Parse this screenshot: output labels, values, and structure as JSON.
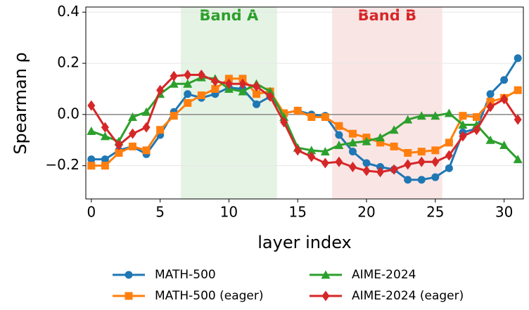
{
  "chart_data": {
    "type": "line",
    "x_label": "layer index",
    "y_label": "Spearman ρ",
    "x": [
      0,
      1,
      2,
      3,
      4,
      5,
      6,
      7,
      8,
      9,
      10,
      11,
      12,
      13,
      14,
      15,
      16,
      17,
      18,
      19,
      20,
      21,
      22,
      23,
      24,
      25,
      26,
      27,
      28,
      29,
      30,
      31
    ],
    "series": [
      {
        "name": "MATH-500",
        "color": "#1f77b4",
        "marker": "circle",
        "values": [
          -0.175,
          -0.175,
          -0.14,
          -0.125,
          -0.155,
          -0.08,
          0.01,
          0.08,
          0.065,
          0.08,
          0.105,
          0.1,
          0.04,
          0.07,
          0.005,
          0.015,
          0.0,
          -0.005,
          -0.08,
          -0.145,
          -0.19,
          -0.205,
          -0.215,
          -0.255,
          -0.255,
          -0.245,
          -0.21,
          -0.07,
          -0.055,
          0.08,
          0.135,
          0.22
        ]
      },
      {
        "name": "MATH-500 (eager)",
        "color": "#ff7f0e",
        "marker": "square",
        "values": [
          -0.2,
          -0.2,
          -0.15,
          -0.125,
          -0.14,
          -0.06,
          -0.005,
          0.045,
          0.075,
          0.1,
          0.14,
          0.14,
          0.08,
          0.09,
          0.005,
          0.015,
          -0.01,
          -0.01,
          -0.045,
          -0.075,
          -0.09,
          -0.11,
          -0.125,
          -0.15,
          -0.145,
          -0.14,
          -0.11,
          -0.005,
          -0.01,
          0.05,
          0.065,
          0.095
        ]
      },
      {
        "name": "AIME-2024",
        "color": "#2ca02c",
        "marker": "triangle",
        "values": [
          -0.065,
          -0.085,
          -0.105,
          -0.01,
          0.01,
          0.08,
          0.12,
          0.12,
          0.145,
          0.14,
          0.1,
          0.09,
          0.12,
          0.09,
          -0.01,
          -0.13,
          -0.14,
          -0.145,
          -0.12,
          -0.11,
          -0.105,
          -0.09,
          -0.06,
          -0.02,
          -0.005,
          -0.005,
          0.005,
          -0.04,
          -0.04,
          -0.1,
          -0.12,
          -0.175
        ]
      },
      {
        "name": "AIME-2024 (eager)",
        "color": "#d62728",
        "marker": "diamond",
        "values": [
          0.035,
          -0.05,
          -0.12,
          -0.075,
          -0.05,
          0.095,
          0.15,
          0.155,
          0.155,
          0.13,
          0.12,
          0.12,
          0.11,
          0.07,
          -0.03,
          -0.14,
          -0.165,
          -0.19,
          -0.185,
          -0.205,
          -0.22,
          -0.225,
          -0.215,
          -0.195,
          -0.185,
          -0.185,
          -0.16,
          -0.085,
          -0.06,
          0.03,
          0.06,
          -0.02
        ]
      }
    ],
    "bands": [
      {
        "label": "Band A",
        "range": [
          6.5,
          13.5
        ],
        "color": "#2ca02c"
      },
      {
        "label": "Band B",
        "range": [
          17.5,
          25.5
        ],
        "color": "#d62728"
      }
    ],
    "hline": 0,
    "xlim": [
      -0.4,
      31.4
    ],
    "ylim": [
      -0.33,
      0.42
    ],
    "xticks": [
      0,
      5,
      10,
      15,
      20,
      25,
      30
    ],
    "yticks": [
      {
        "value": -0.2,
        "label": "−0.2"
      },
      {
        "value": 0,
        "label": "0.0"
      },
      0.2,
      0.4
    ],
    "grid": true,
    "legend": "below"
  }
}
